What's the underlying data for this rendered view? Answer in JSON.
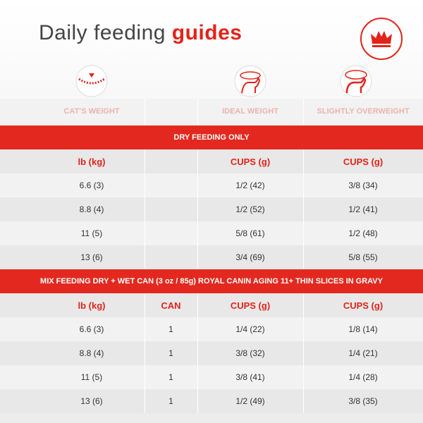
{
  "header": {
    "title_plain": "Daily feeding",
    "title_bold": "guides"
  },
  "columns": [
    "CAT’S WEIGHT",
    "IDEAL WEIGHT",
    "SLIGHTLY OVERWEIGHT"
  ],
  "sections": [
    {
      "title": "DRY FEEDING ONLY",
      "header": [
        "lb (kg)",
        null,
        "CUPS (g)",
        "CUPS (g)"
      ],
      "rows": [
        [
          "6.6 (3)",
          null,
          "1/2 (42)",
          "3/8 (34)"
        ],
        [
          "8.8 (4)",
          null,
          "1/2 (52)",
          "1/2 (41)"
        ],
        [
          "11 (5)",
          null,
          "5/8 (61)",
          "1/2 (48)"
        ],
        [
          "13 (6)",
          null,
          "3/4 (69)",
          "5/8 (55)"
        ]
      ]
    },
    {
      "title": "MIX FEEDING DRY + WET CAN (3 oz / 85g) ROYAL CANIN AGING 11+ THIN SLICES IN GRAVY",
      "header": [
        "lb (kg)",
        "CAN",
        "CUPS (g)",
        "CUPS (g)"
      ],
      "rows": [
        [
          "6.6 (3)",
          "1",
          "1/4 (22)",
          "1/8 (14)"
        ],
        [
          "8.8 (4)",
          "1",
          "3/8 (32)",
          "1/4 (21)"
        ],
        [
          "11 (5)",
          "1",
          "3/8 (41)",
          "1/4 (28)"
        ],
        [
          "13 (6)",
          "1",
          "1/2 (49)",
          "3/8 (35)"
        ]
      ]
    }
  ]
}
